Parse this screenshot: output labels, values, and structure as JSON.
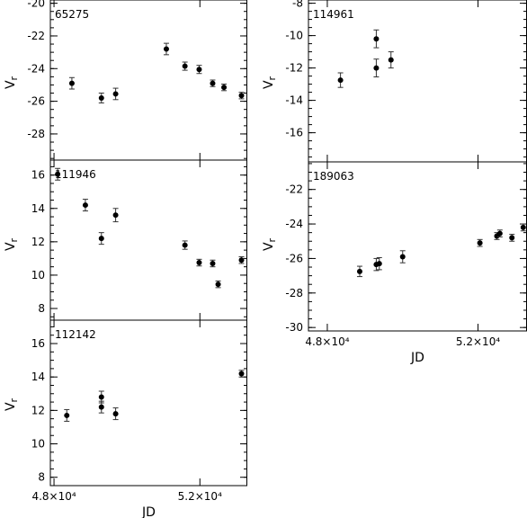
{
  "chart_data": [
    {
      "type": "scatter",
      "star": "65275",
      "ylabel": "Vr",
      "ylim": [
        -29.6,
        -19.8
      ],
      "yticks": [
        -20,
        -22,
        -24,
        -26,
        -28
      ],
      "ytick_labels": [
        "-20",
        "-22",
        "-24",
        "-26",
        "-28"
      ],
      "xlim": [
        47900,
        53300
      ],
      "xticks": [
        48000,
        52000
      ],
      "xtick_labels": [],
      "xlabel": "",
      "points": [
        {
          "x": 48490,
          "y": -24.9,
          "err": 0.35
        },
        {
          "x": 49300,
          "y": -25.8,
          "err": 0.3
        },
        {
          "x": 49690,
          "y": -25.55,
          "err": 0.35
        },
        {
          "x": 51080,
          "y": -22.8,
          "err": 0.35
        },
        {
          "x": 51590,
          "y": -23.85,
          "err": 0.25
        },
        {
          "x": 51980,
          "y": -24.05,
          "err": 0.25
        },
        {
          "x": 52350,
          "y": -24.9,
          "err": 0.2
        },
        {
          "x": 52660,
          "y": -25.15,
          "err": 0.2
        },
        {
          "x": 53140,
          "y": -25.65,
          "err": 0.2
        }
      ]
    },
    {
      "type": "scatter",
      "star": "111946",
      "ylabel": "Vr",
      "ylim": [
        7.3,
        16.9
      ],
      "yticks": [
        16,
        14,
        12,
        10,
        8
      ],
      "ytick_labels": [
        "16",
        "14",
        "12",
        "10",
        "8"
      ],
      "xlim": [
        47900,
        53300
      ],
      "xticks": [
        48000,
        52000
      ],
      "xtick_labels": [],
      "xlabel": "",
      "points": [
        {
          "x": 48100,
          "y": 16.05,
          "err": 0.35
        },
        {
          "x": 48860,
          "y": 14.2,
          "err": 0.35
        },
        {
          "x": 49300,
          "y": 12.2,
          "err": 0.35
        },
        {
          "x": 49690,
          "y": 13.6,
          "err": 0.4
        },
        {
          "x": 51590,
          "y": 11.8,
          "err": 0.25
        },
        {
          "x": 51980,
          "y": 10.75,
          "err": 0.2
        },
        {
          "x": 52350,
          "y": 10.7,
          "err": 0.2
        },
        {
          "x": 52500,
          "y": 9.45,
          "err": 0.2
        },
        {
          "x": 53140,
          "y": 10.9,
          "err": 0.2
        }
      ]
    },
    {
      "type": "scatter",
      "star": "112142",
      "ylabel": "Vr",
      "ylim": [
        7.5,
        17.4
      ],
      "yticks": [
        16,
        14,
        12,
        10,
        8
      ],
      "ytick_labels": [
        "16",
        "14",
        "12",
        "10",
        "8"
      ],
      "xlim": [
        47900,
        53300
      ],
      "xticks": [
        48000,
        52000
      ],
      "xtick_labels": [
        "4.8×10⁴",
        "5.2×10⁴"
      ],
      "xlabel": "JD",
      "points": [
        {
          "x": 48350,
          "y": 11.7,
          "err": 0.35
        },
        {
          "x": 49300,
          "y": 12.8,
          "err": 0.35
        },
        {
          "x": 49300,
          "y": 12.2,
          "err": 0.35
        },
        {
          "x": 49690,
          "y": 11.8,
          "err": 0.35
        },
        {
          "x": 53140,
          "y": 14.2,
          "err": 0.2
        }
      ]
    },
    {
      "type": "scatter",
      "star": "114961",
      "ylabel": "Vr",
      "ylim": [
        -17.8,
        -7.8
      ],
      "yticks": [
        -8,
        -10,
        -12,
        -14,
        -16
      ],
      "ytick_labels": [
        "-8",
        "-10",
        "-12",
        "-14",
        "-16"
      ],
      "xlim": [
        47500,
        53300
      ],
      "xticks": [
        48000,
        52000
      ],
      "xtick_labels": [],
      "xlabel": "",
      "points": [
        {
          "x": 48350,
          "y": -12.75,
          "err": 0.45
        },
        {
          "x": 49300,
          "y": -10.2,
          "err": 0.55
        },
        {
          "x": 49300,
          "y": -12.0,
          "err": 0.55
        },
        {
          "x": 49690,
          "y": -11.5,
          "err": 0.5
        }
      ]
    },
    {
      "type": "scatter",
      "star": "189063",
      "ylabel": "Vr",
      "ylim": [
        -30.2,
        -20.4
      ],
      "yticks": [
        -22,
        -24,
        -26,
        -28,
        -30
      ],
      "ytick_labels": [
        "-22",
        "-24",
        "-26",
        "-28",
        "-30"
      ],
      "xlim": [
        47500,
        53300
      ],
      "xticks": [
        48000,
        52000
      ],
      "xtick_labels": [
        "4.8×10⁴",
        "5.2×10⁴"
      ],
      "xlabel": "JD",
      "points": [
        {
          "x": 48860,
          "y": -26.75,
          "err": 0.3
        },
        {
          "x": 49300,
          "y": -26.35,
          "err": 0.35
        },
        {
          "x": 49380,
          "y": -26.3,
          "err": 0.35
        },
        {
          "x": 50000,
          "y": -25.9,
          "err": 0.35
        },
        {
          "x": 52050,
          "y": -25.1,
          "err": 0.2
        },
        {
          "x": 52500,
          "y": -24.7,
          "err": 0.2
        },
        {
          "x": 52580,
          "y": -24.55,
          "err": 0.2
        },
        {
          "x": 52900,
          "y": -24.8,
          "err": 0.2
        },
        {
          "x": 53200,
          "y": -24.2,
          "err": 0.2
        }
      ]
    }
  ]
}
